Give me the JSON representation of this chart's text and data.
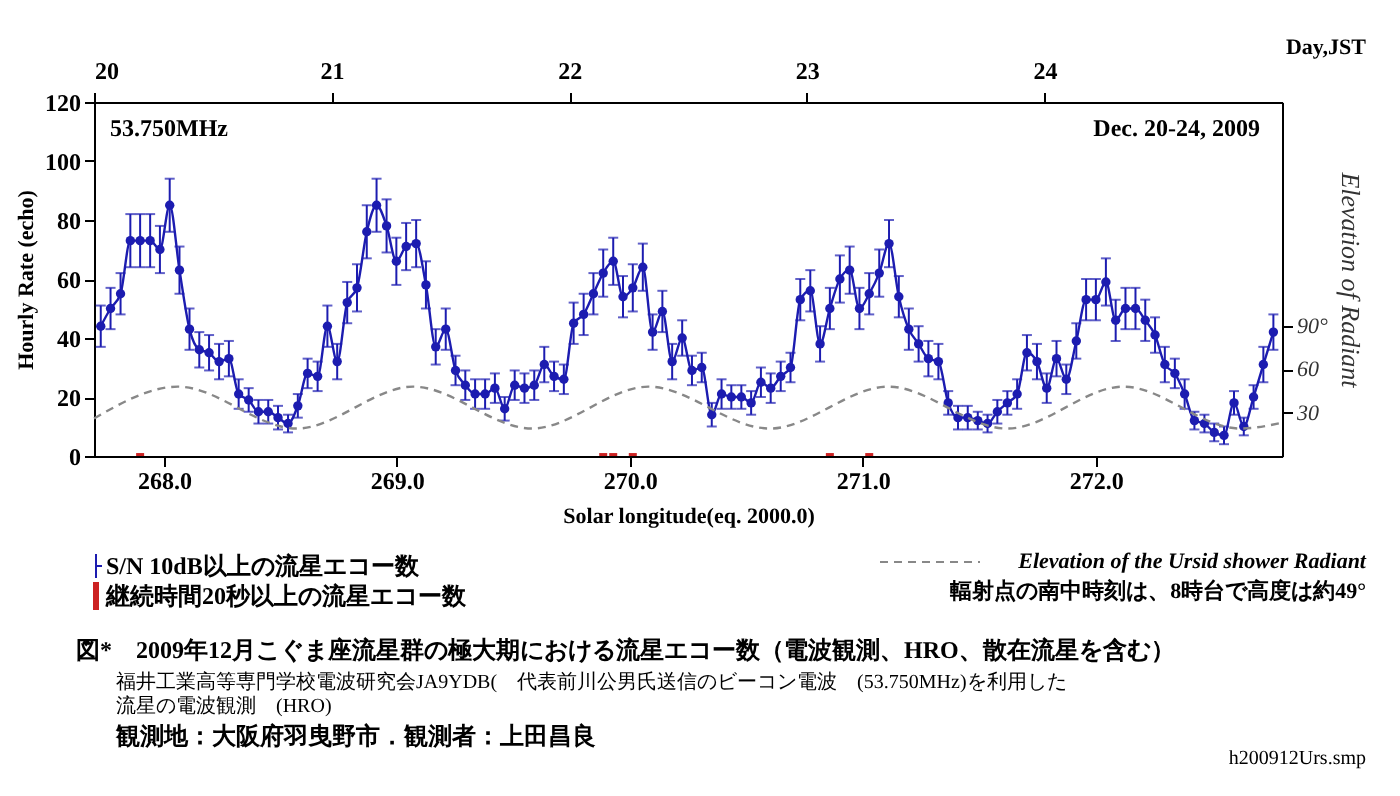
{
  "chart_data": {
    "type": "line",
    "xlabel": "Solar longitude(eq. 2000.0)",
    "ylabel": "Hourly Rate (echo)",
    "y2label": "Elevation of Radiant",
    "x2label": "Day,JST",
    "xlim": [
      267.7,
      272.8
    ],
    "xticks": [
      {
        "value": 268,
        "label": "268.0"
      },
      {
        "value": 269,
        "label": "269.0"
      },
      {
        "value": 270,
        "label": "270.0"
      },
      {
        "value": 271,
        "label": "271.0"
      },
      {
        "value": 272,
        "label": "272.0"
      }
    ],
    "ylim": [
      0,
      120
    ],
    "yticks": [
      0,
      20,
      40,
      60,
      80,
      100,
      120
    ],
    "y2lim": [
      0,
      245
    ],
    "y2ticks": [
      30,
      60,
      {
        "value": 90,
        "label": "90°"
      }
    ],
    "x2lim": [
      20,
      25
    ],
    "x2ticks": [
      20,
      21,
      22,
      23,
      24
    ],
    "grid": false,
    "legend": "bottom",
    "series": [
      {
        "name": "S/N 10dB以上の流星エコー数",
        "type": "line",
        "color": "#1c1cb0",
        "marker": "circle",
        "line_style": "solid",
        "x": [
          267.729,
          267.771,
          267.814,
          267.856,
          267.898,
          267.941,
          267.983,
          268.025,
          268.067,
          268.11,
          268.152,
          268.194,
          268.237,
          268.279,
          268.321,
          268.364,
          268.406,
          268.448,
          268.49,
          268.533,
          268.575,
          268.617,
          268.66,
          268.702,
          268.744,
          268.787,
          268.829,
          268.871,
          268.913,
          268.956,
          268.998,
          269.04,
          269.083,
          269.125,
          269.167,
          269.21,
          269.252,
          269.294,
          269.336,
          269.379,
          269.421,
          269.463,
          269.506,
          269.548,
          269.59,
          269.633,
          269.675,
          269.717,
          269.759,
          269.802,
          269.844,
          269.886,
          269.929,
          269.971,
          270.013,
          270.056,
          270.098,
          270.14,
          270.182,
          270.225,
          270.267,
          270.309,
          270.352,
          270.394,
          270.436,
          270.479,
          270.521,
          270.563,
          270.605,
          270.648,
          270.69,
          270.732,
          270.775,
          270.817,
          270.859,
          270.902,
          270.944,
          270.986,
          271.028,
          271.071,
          271.113,
          271.155,
          271.198,
          271.24,
          271.282,
          271.325,
          271.367,
          271.409,
          271.451,
          271.494,
          271.536,
          271.578,
          271.621,
          271.663,
          271.705,
          271.748,
          271.79,
          271.832,
          271.874,
          271.917,
          271.959,
          272.001,
          272.044,
          272.086,
          272.128,
          272.171,
          272.213,
          272.255,
          272.297,
          272.34,
          272.382,
          272.424,
          272.467,
          272.509,
          272.551,
          272.594,
          272.636,
          272.678,
          272.72,
          272.763
        ],
        "values": [
          44,
          50,
          55,
          73,
          73,
          73,
          70,
          85,
          63,
          43,
          36,
          35,
          32,
          33,
          21,
          19,
          15,
          15,
          13,
          11,
          17,
          28,
          27,
          44,
          32,
          52,
          57,
          76,
          85,
          78,
          66,
          71,
          72,
          58,
          37,
          43,
          29,
          24,
          21,
          21,
          23,
          16,
          24,
          23,
          24,
          31,
          27,
          26,
          45,
          48,
          55,
          62,
          66,
          54,
          57,
          64,
          42,
          49,
          32,
          40,
          29,
          30,
          14,
          21,
          20,
          20,
          18,
          25,
          23,
          27,
          30,
          53,
          56,
          38,
          50,
          60,
          63,
          50,
          55,
          62,
          72,
          54,
          43,
          38,
          33,
          32,
          18,
          13,
          13,
          12,
          11,
          15,
          18,
          21,
          35,
          32,
          23,
          33,
          26,
          39,
          53,
          53,
          59,
          46,
          50,
          50,
          46,
          41,
          31,
          28,
          21,
          12,
          11,
          8,
          7,
          18,
          10,
          20,
          31,
          42
        ],
        "errors": [
          7,
          7,
          7,
          9,
          9,
          9,
          8,
          9,
          8,
          7,
          6,
          6,
          6,
          6,
          5,
          4,
          4,
          4,
          4,
          3,
          4,
          5,
          5,
          7,
          6,
          7,
          8,
          9,
          9,
          9,
          8,
          8,
          8,
          8,
          6,
          7,
          5,
          5,
          5,
          5,
          5,
          4,
          5,
          5,
          5,
          6,
          5,
          5,
          7,
          7,
          7,
          8,
          8,
          7,
          8,
          8,
          6,
          7,
          6,
          6,
          5,
          5,
          4,
          5,
          4,
          4,
          4,
          5,
          5,
          5,
          5,
          7,
          7,
          6,
          7,
          8,
          8,
          7,
          7,
          8,
          8,
          7,
          7,
          6,
          6,
          6,
          4,
          4,
          4,
          3,
          3,
          4,
          4,
          5,
          6,
          6,
          5,
          6,
          5,
          6,
          7,
          7,
          8,
          7,
          7,
          7,
          7,
          6,
          6,
          5,
          5,
          3,
          3,
          3,
          3,
          4,
          3,
          4,
          6,
          6
        ]
      },
      {
        "name": "継続時間20秒以上の流星エコー数",
        "type": "bar",
        "color": "#cc2222",
        "x": [
          267.898,
          269.886,
          269.929,
          270.013,
          270.859,
          271.028
        ],
        "values": [
          1,
          1,
          1,
          1,
          1,
          1
        ]
      },
      {
        "name": "Elevation of the Ursid shower Radiant",
        "type": "line",
        "axis": "y2",
        "color": "#888888",
        "marker": "none",
        "line_style": "dashed",
        "x": [
          267.7,
          268.06,
          268.57,
          269.07,
          269.58,
          270.08,
          270.6,
          271.11,
          271.62,
          272.12,
          272.62,
          272.8
        ],
        "values": [
          26,
          48,
          19,
          48,
          19,
          48,
          19,
          48,
          19,
          48,
          19,
          23
        ]
      }
    ],
    "annotations": [
      "53.750MHz",
      "Dec. 20-24, 2009",
      "輻射点の南中時刻は、8時台で高度は約49°",
      "図*　2009年12月こぐま座流星群の極大期における流星エコー数（電波観測、HRO、散在流星を含む）",
      "福井工業高等専門学校電波研究会JA9YDB(　代表前川公男氏送信のビーコン電波　(53.750MHz)を利用した",
      "流星の電波観測　(HRO)",
      "観測地：大阪府羽曳野市．観測者：上田昌良",
      "h200912Urs.smp"
    ]
  }
}
